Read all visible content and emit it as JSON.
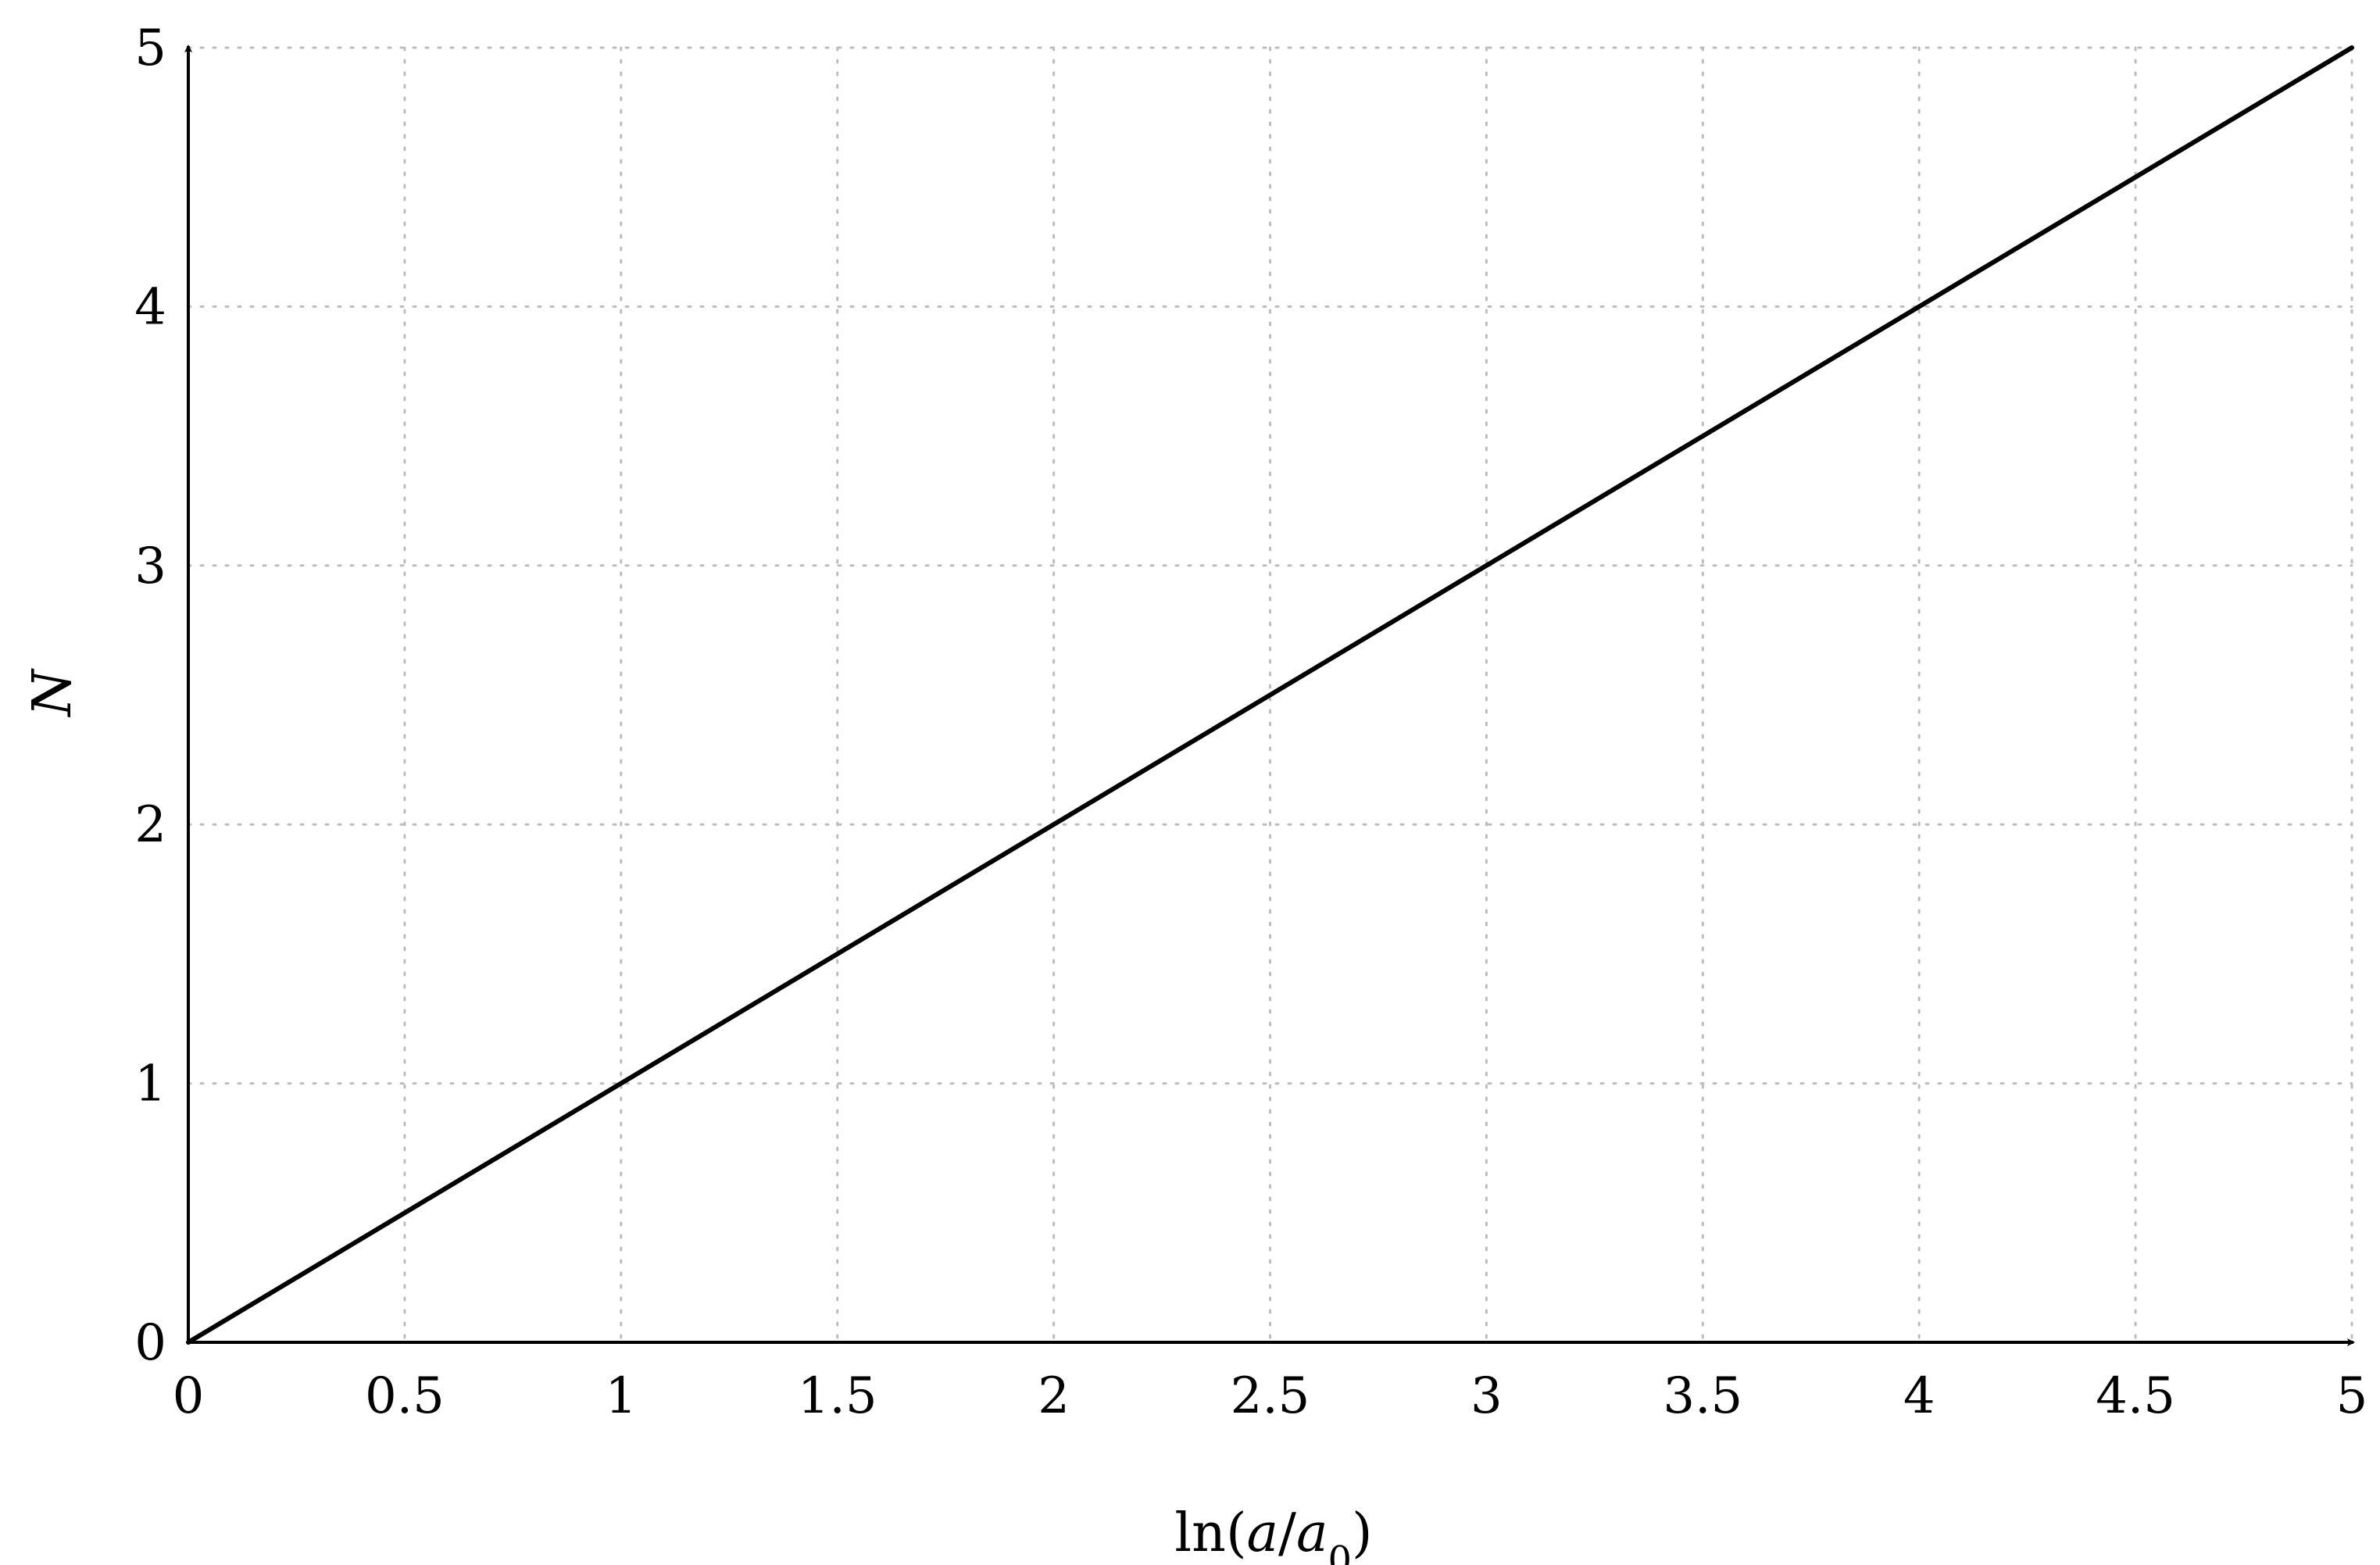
{
  "chart_data": {
    "type": "line",
    "title": "",
    "xlabel": {
      "fn": "ln(",
      "num": "a",
      "slash": "/",
      "den": "a",
      "sub": "0",
      "close": ")"
    },
    "ylabel": "N",
    "xlim": [
      0,
      5
    ],
    "ylim": [
      0,
      5
    ],
    "xticks": [
      0,
      0.5,
      1,
      1.5,
      2,
      2.5,
      3,
      3.5,
      4,
      4.5,
      5
    ],
    "xtick_labels": [
      "0",
      "0.5",
      "1",
      "1.5",
      "2",
      "2.5",
      "3",
      "3.5",
      "4",
      "4.5",
      "5"
    ],
    "yticks": [
      0,
      1,
      2,
      3,
      4,
      5
    ],
    "ytick_labels": [
      "0",
      "1",
      "2",
      "3",
      "4",
      "5"
    ],
    "grid": true,
    "legend": "none",
    "series": [
      {
        "x": [
          0,
          5
        ],
        "y": [
          0,
          5
        ],
        "color": "#000000"
      }
    ]
  }
}
